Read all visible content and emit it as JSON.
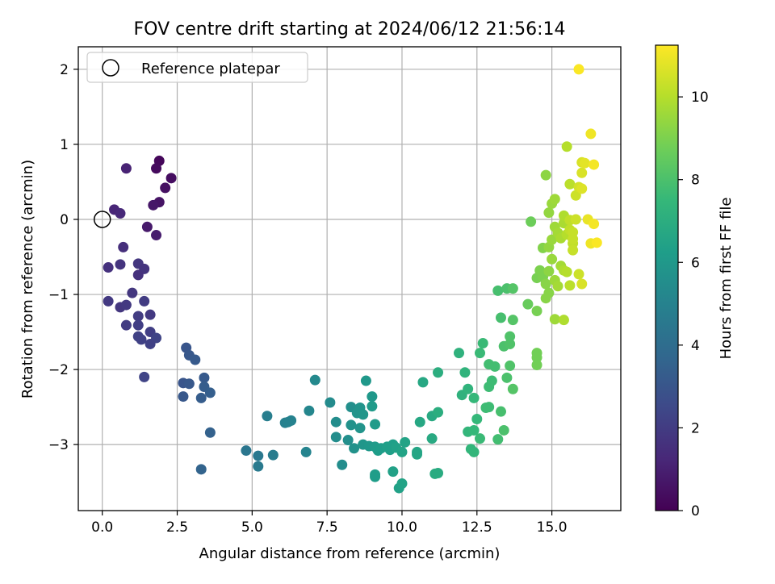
{
  "chart_data": {
    "type": "scatter",
    "title": "FOV centre drift starting at 2024/06/12 21:56:14",
    "xlabel": "Angular distance from reference (arcmin)",
    "ylabel": "Rotation from reference (arcmin)",
    "xlim": [
      -0.8,
      17.3
    ],
    "ylim": [
      -3.88,
      2.3
    ],
    "xticks": [
      0.0,
      2.5,
      5.0,
      7.5,
      10.0,
      12.5,
      15.0
    ],
    "xtick_labels": [
      "0.0",
      "2.5",
      "5.0",
      "7.5",
      "10.0",
      "12.5",
      "15.0"
    ],
    "yticks": [
      -3,
      -2,
      -1,
      0,
      1,
      2
    ],
    "ytick_labels": [
      "−3",
      "−2",
      "−1",
      "0",
      "1",
      "2"
    ],
    "grid": true,
    "legend": {
      "position": "upper left",
      "label": "Reference platepar"
    },
    "reference_point": {
      "x": 0.0,
      "y": 0.0
    },
    "colorbar": {
      "label": "Hours from first FF file",
      "range": [
        0,
        11.25
      ],
      "ticks": [
        0,
        2,
        4,
        6,
        8,
        10
      ],
      "tick_labels": [
        "0",
        "2",
        "4",
        "6",
        "8",
        "10"
      ],
      "colormap": "viridis",
      "colors": [
        "#440154",
        "#482878",
        "#3e4989",
        "#31688e",
        "#26828e",
        "#1f9e89",
        "#35b779",
        "#6ece58",
        "#b5de2b",
        "#fde725"
      ]
    },
    "points": [
      [
        1.9,
        0.78,
        0.2
      ],
      [
        1.8,
        0.68,
        0.3
      ],
      [
        2.3,
        0.55,
        0.4
      ],
      [
        2.1,
        0.42,
        0.5
      ],
      [
        1.9,
        0.23,
        0.6
      ],
      [
        1.7,
        0.19,
        0.7
      ],
      [
        1.5,
        -0.1,
        0.8
      ],
      [
        1.8,
        -0.21,
        0.9
      ],
      [
        0.8,
        0.68,
        1.1
      ],
      [
        0.4,
        0.13,
        1.2
      ],
      [
        0.6,
        0.08,
        1.3
      ],
      [
        0.7,
        -0.37,
        1.5
      ],
      [
        0.2,
        -0.64,
        1.6
      ],
      [
        0.6,
        -0.6,
        1.7
      ],
      [
        1.2,
        -0.59,
        1.8
      ],
      [
        1.4,
        -0.66,
        1.7
      ],
      [
        1.2,
        -0.74,
        1.6
      ],
      [
        1.0,
        -0.98,
        1.8
      ],
      [
        0.2,
        -1.09,
        1.9
      ],
      [
        0.6,
        -1.17,
        1.8
      ],
      [
        0.8,
        -1.14,
        1.9
      ],
      [
        1.4,
        -1.09,
        2.0
      ],
      [
        1.6,
        -1.27,
        1.9
      ],
      [
        1.2,
        -1.29,
        2.0
      ],
      [
        0.8,
        -1.41,
        2.0
      ],
      [
        1.2,
        -1.41,
        2.1
      ],
      [
        1.2,
        -1.56,
        2.2
      ],
      [
        1.6,
        -1.5,
        2.1
      ],
      [
        1.3,
        -1.6,
        2.2
      ],
      [
        1.8,
        -1.58,
        2.3
      ],
      [
        1.6,
        -1.66,
        2.2
      ],
      [
        1.4,
        -2.1,
        2.3
      ],
      [
        2.8,
        -1.71,
        3.0
      ],
      [
        2.9,
        -1.81,
        3.1
      ],
      [
        3.1,
        -1.87,
        3.2
      ],
      [
        2.7,
        -2.18,
        3.0
      ],
      [
        2.9,
        -2.19,
        3.1
      ],
      [
        3.4,
        -2.11,
        3.2
      ],
      [
        3.4,
        -2.23,
        3.3
      ],
      [
        3.6,
        -2.31,
        3.4
      ],
      [
        3.3,
        -2.38,
        3.3
      ],
      [
        2.7,
        -2.36,
        3.1
      ],
      [
        3.6,
        -2.84,
        3.5
      ],
      [
        3.3,
        -3.33,
        3.6
      ],
      [
        4.8,
        -3.08,
        4.4
      ],
      [
        5.2,
        -3.15,
        4.5
      ],
      [
        5.2,
        -3.29,
        4.6
      ],
      [
        5.7,
        -3.14,
        4.7
      ],
      [
        5.5,
        -2.62,
        4.8
      ],
      [
        6.1,
        -2.71,
        4.9
      ],
      [
        6.3,
        -2.68,
        5.0
      ],
      [
        6.2,
        -2.7,
        5.0
      ],
      [
        6.9,
        -2.55,
        5.2
      ],
      [
        6.8,
        -3.1,
        5.1
      ],
      [
        7.1,
        -2.14,
        5.3
      ],
      [
        7.6,
        -2.44,
        5.4
      ],
      [
        7.8,
        -2.7,
        5.5
      ],
      [
        7.8,
        -2.9,
        5.5
      ],
      [
        8.0,
        -3.27,
        5.5
      ],
      [
        8.2,
        -2.94,
        5.6
      ],
      [
        8.3,
        -2.5,
        5.6
      ],
      [
        8.3,
        -2.74,
        5.7
      ],
      [
        8.4,
        -3.05,
        5.7
      ],
      [
        8.5,
        -2.58,
        5.8
      ],
      [
        8.6,
        -2.78,
        5.8
      ],
      [
        8.6,
        -2.51,
        5.8
      ],
      [
        8.7,
        -2.6,
        5.9
      ],
      [
        8.7,
        -3.0,
        5.9
      ],
      [
        8.8,
        -2.15,
        6.0
      ],
      [
        8.9,
        -3.02,
        6.0
      ],
      [
        9.0,
        -2.36,
        6.0
      ],
      [
        9.0,
        -2.49,
        6.1
      ],
      [
        9.1,
        -2.73,
        6.1
      ],
      [
        9.1,
        -3.03,
        6.1
      ],
      [
        9.1,
        -3.43,
        6.2
      ],
      [
        9.1,
        -3.4,
        6.2
      ],
      [
        9.2,
        -3.08,
        6.2
      ],
      [
        9.3,
        -3.05,
        6.2
      ],
      [
        9.5,
        -3.03,
        6.3
      ],
      [
        9.6,
        -3.07,
        6.3
      ],
      [
        9.7,
        -3.0,
        6.3
      ],
      [
        9.7,
        -3.36,
        6.4
      ],
      [
        9.8,
        -3.04,
        6.4
      ],
      [
        9.9,
        -3.58,
        6.4
      ],
      [
        10.0,
        -3.52,
        6.5
      ],
      [
        10.0,
        -3.1,
        6.5
      ],
      [
        10.1,
        -2.97,
        6.5
      ],
      [
        10.5,
        -3.1,
        6.6
      ],
      [
        10.5,
        -3.13,
        6.6
      ],
      [
        10.6,
        -2.7,
        6.7
      ],
      [
        10.7,
        -2.17,
        6.7
      ],
      [
        11.0,
        -2.92,
        6.8
      ],
      [
        11.0,
        -2.62,
        6.8
      ],
      [
        11.1,
        -3.39,
        6.9
      ],
      [
        11.2,
        -3.38,
        6.9
      ],
      [
        11.2,
        -2.57,
        7.0
      ],
      [
        11.2,
        -2.04,
        7.0
      ],
      [
        11.9,
        -1.78,
        7.2
      ],
      [
        12.0,
        -2.34,
        7.2
      ],
      [
        12.1,
        -2.04,
        7.3
      ],
      [
        12.2,
        -2.26,
        7.3
      ],
      [
        12.2,
        -2.83,
        7.4
      ],
      [
        12.3,
        -3.06,
        7.4
      ],
      [
        12.4,
        -3.1,
        7.4
      ],
      [
        12.4,
        -2.38,
        7.5
      ],
      [
        12.4,
        -2.81,
        7.5
      ],
      [
        12.5,
        -2.66,
        7.5
      ],
      [
        12.6,
        -2.92,
        7.6
      ],
      [
        12.7,
        -1.65,
        7.6
      ],
      [
        12.6,
        -1.78,
        7.6
      ],
      [
        12.8,
        -2.51,
        7.7
      ],
      [
        12.9,
        -2.5,
        7.7
      ],
      [
        12.9,
        -2.23,
        7.7
      ],
      [
        13.0,
        -2.15,
        7.7
      ],
      [
        12.9,
        -1.93,
        7.8
      ],
      [
        13.1,
        -1.96,
        7.8
      ],
      [
        13.2,
        -2.93,
        7.8
      ],
      [
        13.2,
        -0.95,
        7.9
      ],
      [
        13.3,
        -1.31,
        7.9
      ],
      [
        13.3,
        -2.56,
        7.9
      ],
      [
        13.4,
        -1.69,
        8.0
      ],
      [
        13.4,
        -2.81,
        8.0
      ],
      [
        13.5,
        -2.11,
        8.0
      ],
      [
        13.5,
        -0.92,
        8.0
      ],
      [
        13.6,
        -1.56,
        8.1
      ],
      [
        13.6,
        -1.66,
        8.1
      ],
      [
        13.6,
        -1.95,
        8.1
      ],
      [
        13.7,
        -0.92,
        8.2
      ],
      [
        13.7,
        -1.34,
        8.2
      ],
      [
        13.7,
        -2.26,
        8.2
      ],
      [
        14.2,
        -1.13,
        8.6
      ],
      [
        14.3,
        -0.03,
        8.7
      ],
      [
        14.5,
        -1.78,
        8.8
      ],
      [
        14.5,
        -1.84,
        8.8
      ],
      [
        14.5,
        -1.94,
        8.8
      ],
      [
        14.5,
        -0.78,
        8.9
      ],
      [
        14.5,
        -1.22,
        8.9
      ],
      [
        14.6,
        -0.68,
        9.0
      ],
      [
        14.7,
        -0.77,
        9.0
      ],
      [
        14.7,
        -0.38,
        9.1
      ],
      [
        14.8,
        -0.86,
        9.2
      ],
      [
        14.8,
        -1.05,
        9.2
      ],
      [
        14.9,
        -0.98,
        9.2
      ],
      [
        14.9,
        -0.69,
        9.3
      ],
      [
        14.8,
        0.59,
        9.3
      ],
      [
        14.9,
        0.09,
        9.4
      ],
      [
        14.9,
        -0.37,
        9.4
      ],
      [
        15.0,
        -0.27,
        9.5
      ],
      [
        15.0,
        0.21,
        9.5
      ],
      [
        15.0,
        -0.53,
        9.5
      ],
      [
        15.1,
        -0.1,
        9.6
      ],
      [
        15.1,
        0.27,
        9.6
      ],
      [
        15.1,
        -0.81,
        9.6
      ],
      [
        15.1,
        -1.33,
        9.6
      ],
      [
        15.2,
        -0.18,
        9.7
      ],
      [
        15.2,
        -0.89,
        9.7
      ],
      [
        15.3,
        -0.62,
        9.7
      ],
      [
        15.3,
        -0.25,
        9.8
      ],
      [
        15.4,
        -0.05,
        9.8
      ],
      [
        15.4,
        0.05,
        9.9
      ],
      [
        15.4,
        -0.68,
        9.9
      ],
      [
        15.4,
        -1.34,
        9.9
      ],
      [
        15.5,
        0.97,
        10.0
      ],
      [
        15.5,
        -0.7,
        10.0
      ],
      [
        15.5,
        -0.2,
        10.0
      ],
      [
        15.6,
        0.47,
        10.1
      ],
      [
        15.6,
        -0.88,
        10.1
      ],
      [
        15.6,
        -0.01,
        10.2
      ],
      [
        15.6,
        -0.14,
        10.2
      ],
      [
        15.7,
        -0.32,
        10.2
      ],
      [
        15.7,
        -0.17,
        10.3
      ],
      [
        15.7,
        -0.26,
        10.3
      ],
      [
        15.7,
        -0.41,
        10.3
      ],
      [
        15.8,
        0.0,
        10.4
      ],
      [
        15.8,
        0.32,
        10.4
      ],
      [
        15.9,
        -0.73,
        10.4
      ],
      [
        15.9,
        0.43,
        10.5
      ],
      [
        15.9,
        2.0,
        11.2
      ],
      [
        16.0,
        0.76,
        10.6
      ],
      [
        16.0,
        0.62,
        10.6
      ],
      [
        16.0,
        -0.86,
        10.6
      ],
      [
        16.0,
        0.41,
        10.7
      ],
      [
        16.1,
        0.75,
        10.8
      ],
      [
        16.2,
        0.0,
        10.9
      ],
      [
        16.3,
        1.14,
        11.0
      ],
      [
        16.3,
        -0.32,
        11.0
      ],
      [
        16.4,
        0.73,
        11.1
      ],
      [
        16.4,
        -0.06,
        11.1
      ],
      [
        16.5,
        -0.31,
        11.2
      ]
    ]
  }
}
